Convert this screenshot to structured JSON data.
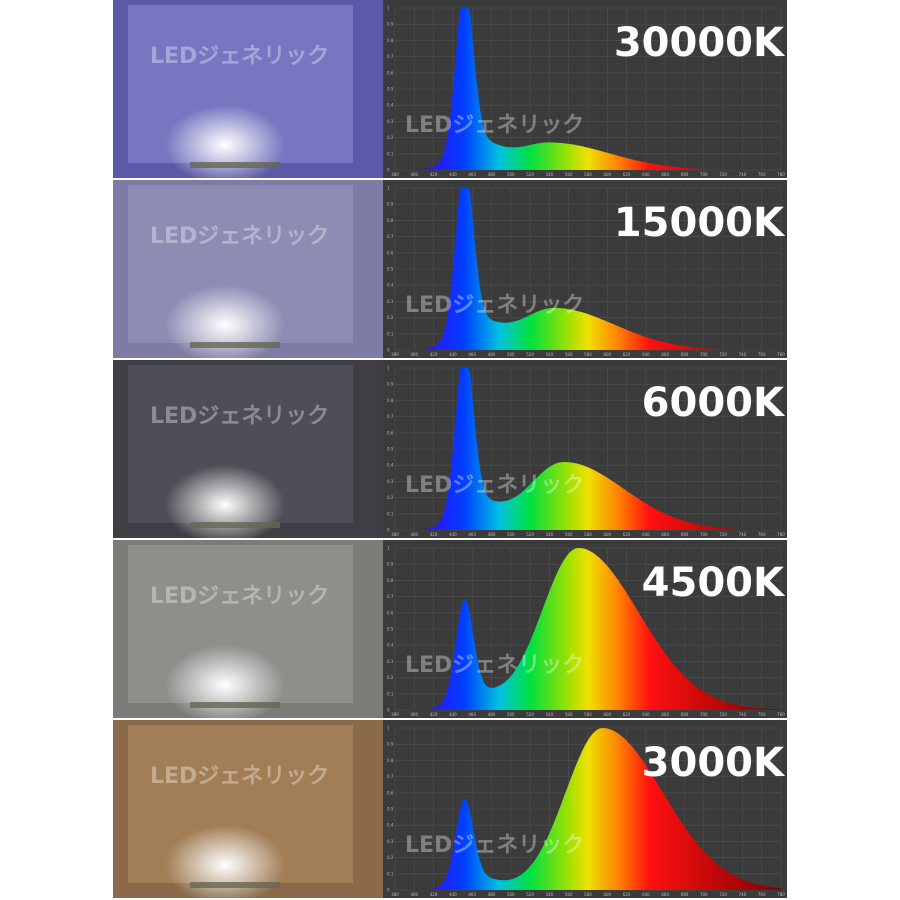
{
  "watermark": "LEDジェネリック",
  "panels": [
    {
      "label": "30000K"
    },
    {
      "label": "15000K"
    },
    {
      "label": "6000K"
    },
    {
      "label": "4500K"
    },
    {
      "label": "3000K"
    }
  ],
  "axis": {
    "x_ticks": [
      380,
      400,
      420,
      440,
      460,
      480,
      500,
      520,
      540,
      560,
      580,
      600,
      620,
      640,
      660,
      680,
      700,
      720,
      740,
      760,
      780
    ],
    "y_ticks": [
      0,
      0.1,
      0.2,
      0.3,
      0.4,
      0.5,
      0.6,
      0.7,
      0.8,
      0.9,
      1
    ]
  }
}
